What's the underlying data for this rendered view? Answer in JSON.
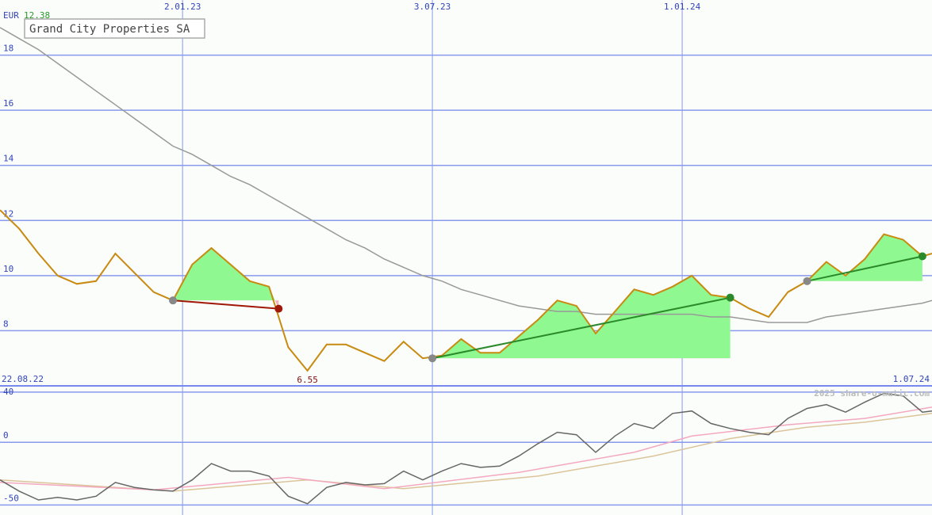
{
  "title": "Grand City Properties SA",
  "currency": "EUR",
  "price_label": 12.38,
  "watermark": "2025 share-o-matic.com",
  "chart_data": [
    {
      "type": "line",
      "xlim": [
        "22.08.22",
        "1.07.24"
      ],
      "xticks": [
        "2.01.23",
        "3.07.23",
        "1.01.24"
      ],
      "ylim": [
        6,
        20
      ],
      "yticks": [
        8,
        10,
        12,
        14,
        16,
        18
      ],
      "grid": true,
      "x": [
        "22.08.22",
        "5.09.22",
        "19.09.22",
        "3.10.22",
        "17.10.22",
        "31.10.22",
        "14.11.22",
        "28.11.22",
        "12.12.22",
        "26.12.22",
        "9.01.23",
        "23.01.23",
        "6.02.23",
        "20.02.23",
        "6.03.23",
        "20.03.23",
        "3.04.23",
        "17.04.23",
        "1.05.23",
        "15.05.23",
        "29.05.23",
        "12.06.23",
        "26.06.23",
        "10.07.23",
        "24.07.23",
        "7.08.23",
        "21.08.23",
        "4.09.23",
        "18.09.23",
        "2.10.23",
        "16.10.23",
        "30.10.23",
        "13.11.23",
        "27.11.23",
        "11.12.23",
        "25.12.23",
        "8.01.24",
        "22.01.24",
        "5.02.24",
        "19.02.24",
        "4.03.24",
        "18.03.24",
        "1.04.24",
        "15.04.24",
        "29.04.24",
        "13.05.24",
        "27.05.24",
        "10.06.24",
        "24.06.24",
        "1.07.24"
      ],
      "series": [
        {
          "color": "#999999",
          "values": [
            19.0,
            18.6,
            18.2,
            17.7,
            17.2,
            16.7,
            16.2,
            15.7,
            15.2,
            14.7,
            14.4,
            14.0,
            13.6,
            13.3,
            12.9,
            12.5,
            12.1,
            11.7,
            11.3,
            11.0,
            10.6,
            10.3,
            10.0,
            9.8,
            9.5,
            9.3,
            9.1,
            8.9,
            8.8,
            8.7,
            8.7,
            8.6,
            8.6,
            8.6,
            8.6,
            8.6,
            8.6,
            8.5,
            8.5,
            8.4,
            8.3,
            8.3,
            8.3,
            8.5,
            8.6,
            8.7,
            8.8,
            8.9,
            9.0,
            9.1
          ]
        },
        {
          "color": "#c88a10",
          "values": [
            12.38,
            11.7,
            10.8,
            10.0,
            9.7,
            9.8,
            10.8,
            10.1,
            9.4,
            9.1,
            10.4,
            11.0,
            10.4,
            9.8,
            9.6,
            7.4,
            6.55,
            7.5,
            7.5,
            7.2,
            6.9,
            7.6,
            7.0,
            7.1,
            7.7,
            7.2,
            7.2,
            7.8,
            8.4,
            9.1,
            8.9,
            7.9,
            8.7,
            9.5,
            9.3,
            9.6,
            10.0,
            9.3,
            9.2,
            8.8,
            8.5,
            9.4,
            9.8,
            10.5,
            10.0,
            10.6,
            11.5,
            11.3,
            10.7,
            10.8
          ]
        }
      ],
      "trades": [
        {
          "x": [
            "26.12.22",
            "13.03.23"
          ],
          "values": [
            9.1,
            8.8
          ],
          "color": "#a01808"
        },
        {
          "x": [
            "3.07.23",
            "5.02.24"
          ],
          "values": [
            7.0,
            9.2
          ],
          "color": "#2a8a2a"
        },
        {
          "x": [
            "1.04.24",
            "24.06.24"
          ],
          "values": [
            9.8,
            10.7
          ],
          "color": "#2a8a2a"
        }
      ],
      "low": {
        "x": "3.04.23",
        "value": 6.55
      }
    },
    {
      "type": "line",
      "xlim": [
        "22.08.22",
        "1.07.24"
      ],
      "ylim": [
        -58,
        45
      ],
      "yticks": [
        40,
        0,
        -50
      ],
      "grid": true,
      "series": [
        {
          "color": "#dcc49a",
          "x": [
            "22.08.22",
            "26.12.22",
            "3.04.23",
            "12.06.23",
            "18.09.23",
            "11.12.23",
            "5.02.24",
            "1.04.24",
            "13.05.24",
            "1.07.24"
          ],
          "values": [
            -30,
            -39,
            -30,
            -37,
            -27,
            -11,
            3,
            12,
            16,
            23
          ]
        },
        {
          "color": "#f4a8c0",
          "x": [
            "22.08.22",
            "12.12.22",
            "20.03.23",
            "29.05.23",
            "4.09.23",
            "27.11.23",
            "8.01.24",
            "18.03.24",
            "13.05.24",
            "1.07.24"
          ],
          "values": [
            -32,
            -38,
            -28,
            -37,
            -24,
            -8,
            5,
            14,
            19,
            28
          ]
        },
        {
          "color": "#666666",
          "x": [
            "22.08.22",
            "5.09.22",
            "19.09.22",
            "3.10.22",
            "17.10.22",
            "31.10.22",
            "14.11.22",
            "28.11.22",
            "12.12.22",
            "26.12.22",
            "9.01.23",
            "23.01.23",
            "6.02.23",
            "20.02.23",
            "6.03.23",
            "20.03.23",
            "3.04.23",
            "17.04.23",
            "1.05.23",
            "15.05.23",
            "29.05.23",
            "12.06.23",
            "26.06.23",
            "10.07.23",
            "24.07.23",
            "7.08.23",
            "21.08.23",
            "4.09.23",
            "18.09.23",
            "2.10.23",
            "16.10.23",
            "30.10.23",
            "13.11.23",
            "27.11.23",
            "11.12.23",
            "25.12.23",
            "8.01.24",
            "22.01.24",
            "5.02.24",
            "19.02.24",
            "4.03.24",
            "18.03.24",
            "1.04.24",
            "15.04.24",
            "29.04.24",
            "13.05.24",
            "27.05.24",
            "10.06.24",
            "24.06.24",
            "1.07.24"
          ],
          "values": [
            -30,
            -39,
            -46,
            -44,
            -46,
            -43,
            -32,
            -36,
            -38,
            -39,
            -30,
            -17,
            -23,
            -23,
            -27,
            -43,
            -49,
            -36,
            -32,
            -34,
            -33,
            -23,
            -30,
            -23,
            -17,
            -20,
            -19,
            -11,
            -1,
            8,
            6,
            -8,
            5,
            15,
            11,
            23,
            25,
            15,
            11,
            8,
            6,
            19,
            27,
            30,
            24,
            32,
            39,
            37,
            24,
            25
          ]
        }
      ]
    }
  ]
}
